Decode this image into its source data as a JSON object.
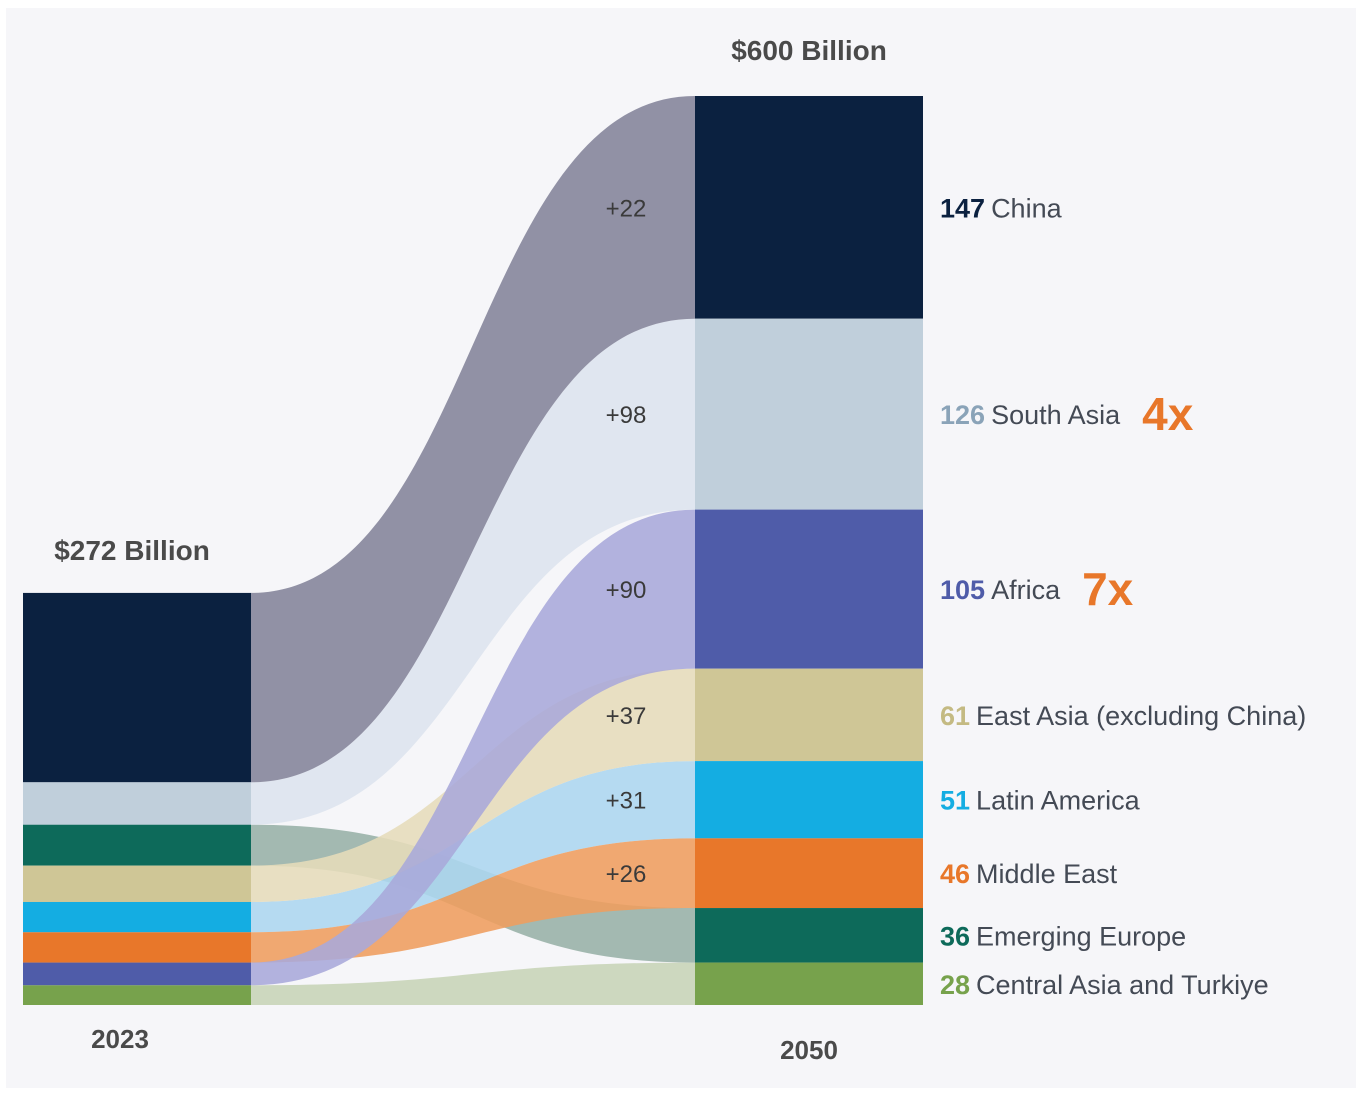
{
  "chart_data": {
    "type": "sankey",
    "title": "",
    "unit": "$ Billion",
    "left_total_label": "$272 Billion",
    "right_total_label": "$600 Billion",
    "left_year": "2023",
    "right_year": "2050",
    "left_total": 272,
    "right_total": 600,
    "regions": [
      {
        "name": "China",
        "value_2023": 125,
        "value_2050_label": "147",
        "value_2050": 147,
        "delta_label": "+22",
        "delta": 22,
        "multiplier": "",
        "color": "#0b2140",
        "flow_color": "#838399",
        "label_color": "#0b2140"
      },
      {
        "name": "South Asia",
        "value_2023": 28,
        "value_2050_label": "126",
        "value_2050": 126,
        "delta_label": "+98",
        "delta": 98,
        "multiplier": "4x",
        "color": "#c0cfdb",
        "flow_color": "#dde4ee",
        "label_color": "#8aa3b8"
      },
      {
        "name": "Africa",
        "value_2023": 15,
        "value_2050_label": "105",
        "value_2050": 105,
        "delta_label": "+90",
        "delta": 90,
        "multiplier": "7x",
        "color": "#4f5ca9",
        "flow_color": "#a9a8d9",
        "label_color": "#4f5ca9"
      },
      {
        "name": "East Asia (excluding China)",
        "value_2023": 24,
        "value_2050_label": "61",
        "value_2050": 61,
        "delta_label": "+37",
        "delta": 37,
        "multiplier": "",
        "color": "#cfc696",
        "flow_color": "#e6dcb9",
        "label_color": "#c4ba83"
      },
      {
        "name": "Latin America",
        "value_2023": 20,
        "value_2050_label": "51",
        "value_2050": 51,
        "delta_label": "+31",
        "delta": 31,
        "multiplier": "",
        "color": "#14ade2",
        "flow_color": "#acd6ef",
        "label_color": "#14ade2"
      },
      {
        "name": "Middle East",
        "value_2023": 20,
        "value_2050_label": "46",
        "value_2050": 46,
        "delta_label": "+26",
        "delta": 26,
        "multiplier": "",
        "color": "#e8772a",
        "flow_color": "#ef9d5d",
        "label_color": "#e8772a"
      },
      {
        "name": "Emerging Europe",
        "value_2023": 27,
        "value_2050_label": "36",
        "value_2050": 36,
        "delta_label": "",
        "delta": 9,
        "multiplier": "",
        "color": "#0d6a5a",
        "flow_color": "#97b0a6",
        "label_color": "#0d6a5a"
      },
      {
        "name": "Central Asia and Turkiye",
        "value_2023": 13,
        "value_2050_label": "28",
        "value_2050": 28,
        "delta_label": "",
        "delta": 15,
        "multiplier": "",
        "color": "#77a24c",
        "flow_color": "#c7d4b6",
        "label_color": "#77a24c"
      }
    ],
    "left_order": [
      "China",
      "South Asia",
      "Emerging Europe",
      "East Asia (excluding China)",
      "Latin America",
      "Middle East",
      "Africa",
      "Central Asia and Turkiye"
    ],
    "right_order": [
      "China",
      "South Asia",
      "Africa",
      "East Asia (excluding China)",
      "Latin America",
      "Middle East",
      "Emerging Europe",
      "Central Asia and Turkiye"
    ]
  }
}
